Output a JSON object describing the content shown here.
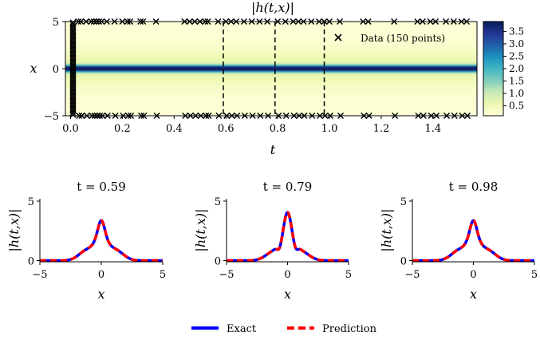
{
  "chart_data": [
    {
      "type": "heatmap",
      "title": "|h(t,x)|",
      "xlabel": "t",
      "ylabel": "x",
      "xlim": [
        -0.02,
        1.57
      ],
      "ylim": [
        -5,
        5
      ],
      "xticks": [
        "0.0",
        "0.2",
        "0.4",
        "0.6",
        "0.8",
        "1.0",
        "1.2",
        "1.4"
      ],
      "yticks": [
        "5",
        "0",
        "−5"
      ],
      "colorbar": {
        "min": 0.1,
        "max": 3.9,
        "ticks": [
          "0.5",
          "1.0",
          "1.5",
          "2.0",
          "2.5",
          "3.0",
          "3.5"
        ]
      },
      "colormap": [
        "#ffffd9",
        "#edf8b1",
        "#c7e9b4",
        "#7fcdbb",
        "#41b6c4",
        "#1d91c0",
        "#225ea8",
        "#253494",
        "#081d58"
      ],
      "slices_t": [
        0.59,
        0.79,
        0.98
      ],
      "data_points": {
        "label": "Data (150 points)",
        "marker": "x",
        "x0_t": 0.0,
        "boundary_t": [
          0.03,
          0.04,
          0.06,
          0.08,
          0.09,
          0.1,
          0.11,
          0.12,
          0.14,
          0.17,
          0.2,
          0.22,
          0.23,
          0.27,
          0.28,
          0.33,
          0.44,
          0.46,
          0.48,
          0.5,
          0.52,
          0.53,
          0.57,
          0.6,
          0.62,
          0.64,
          0.67,
          0.7,
          0.73,
          0.76,
          0.8,
          0.83,
          0.86,
          0.88,
          0.9,
          0.93,
          0.96,
          0.98,
          1.0,
          1.04,
          1.13,
          1.15,
          1.25,
          1.34,
          1.36,
          1.39,
          1.41,
          1.45,
          1.48,
          1.51,
          1.53
        ],
        "upper_x": 5,
        "lower_x": -5
      }
    },
    {
      "type": "line",
      "title": "t = 0.59",
      "xlabel": "x",
      "ylabel": "|h(t,x)|",
      "xlim": [
        -5,
        5
      ],
      "ylim": [
        -0.1,
        5.2
      ],
      "xticks": [
        "−5",
        "0",
        "5"
      ],
      "yticks": [
        "0",
        "5"
      ],
      "profile": {
        "peak": 3.3,
        "shoulder": 0.75,
        "dip": 0.0,
        "p": 1.2
      },
      "series": [
        {
          "name": "Exact",
          "color": "#0000ff",
          "style": "solid"
        },
        {
          "name": "Prediction",
          "color": "#ff0000",
          "style": "dashed"
        }
      ]
    },
    {
      "type": "line",
      "title": "t = 0.79",
      "xlabel": "x",
      "ylabel": "|h(t,x)|",
      "xlim": [
        -5,
        5
      ],
      "ylim": [
        -0.1,
        5.2
      ],
      "xticks": [
        "−5",
        "0",
        "5"
      ],
      "yticks": [
        "0",
        "5"
      ],
      "profile": {
        "peak": 4.0,
        "shoulder": 0.6,
        "dip": 0.5,
        "p": 1.2
      },
      "series": [
        {
          "name": "Exact",
          "color": "#0000ff",
          "style": "solid"
        },
        {
          "name": "Prediction",
          "color": "#ff0000",
          "style": "dashed"
        }
      ]
    },
    {
      "type": "line",
      "title": "t = 0.98",
      "xlabel": "x",
      "ylabel": "|h(t,x)|",
      "xlim": [
        -5,
        5
      ],
      "ylim": [
        -0.1,
        5.2
      ],
      "xticks": [
        "−5",
        "0",
        "5"
      ],
      "yticks": [
        "0",
        "5"
      ],
      "profile": {
        "peak": 3.3,
        "shoulder": 0.75,
        "dip": 0.0,
        "p": 1.2
      },
      "series": [
        {
          "name": "Exact",
          "color": "#0000ff",
          "style": "solid"
        },
        {
          "name": "Prediction",
          "color": "#ff0000",
          "style": "dashed"
        }
      ]
    }
  ],
  "legend": {
    "placement": "bottom-center",
    "items": [
      {
        "label": "Exact",
        "color": "#0000ff",
        "style": "solid"
      },
      {
        "label": "Prediction",
        "color": "#ff0000",
        "style": "dashed"
      }
    ]
  }
}
